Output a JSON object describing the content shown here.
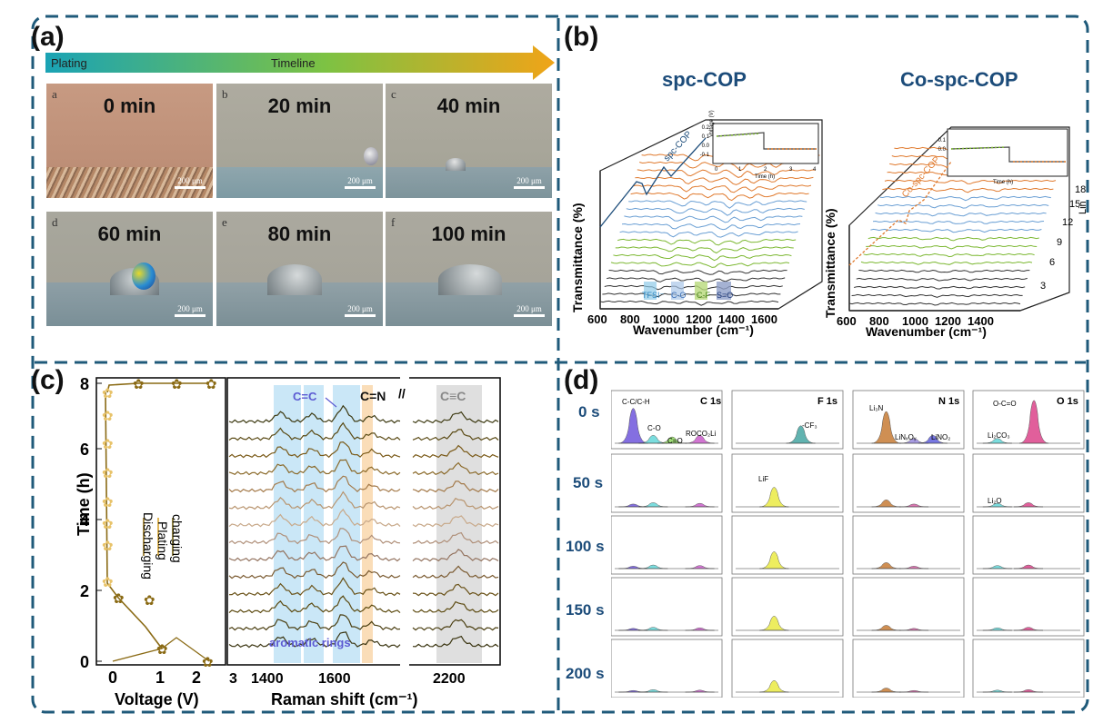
{
  "panels": {
    "a": "(a)",
    "b": "(b)",
    "c": "(c)",
    "d": "(d)"
  },
  "a": {
    "arrow_left": "Plating",
    "arrow_center": "Timeline",
    "scale": "200 μm",
    "photos": [
      {
        "letter": "a",
        "time": "0 min"
      },
      {
        "letter": "b",
        "time": "20 min"
      },
      {
        "letter": "c",
        "time": "40 min"
      },
      {
        "letter": "d",
        "time": "60 min"
      },
      {
        "letter": "e",
        "time": "80 min"
      },
      {
        "letter": "f",
        "time": "100 min"
      }
    ]
  },
  "b": {
    "left_title": "spc-COP",
    "right_title": "Co-spc-COP",
    "ylabel": "Transmittance (%)",
    "xlabel": "Wavenumber (cm⁻¹)",
    "left_ticks": [
      "600",
      "800",
      "1000",
      "1200",
      "1400",
      "1600"
    ],
    "right_ticks": [
      "600",
      "800",
      "1000",
      "1200",
      "1400"
    ],
    "bands": [
      "TFSI⁻",
      "C-O",
      "C-F",
      "S=O"
    ],
    "curve_label_left": "spc-COP",
    "curve_label_right": "Co-spc-COP",
    "inset_ylabel": "Voltage (V)",
    "inset_xlabel": "Time (h)",
    "inset_yticks": [
      "0.2",
      "0.1",
      "0.0",
      "-0.1"
    ],
    "inset_yticks_right": [
      "0.1",
      "0.0"
    ],
    "inset_xticks": [
      "0",
      "1",
      "2",
      "3",
      "4"
    ],
    "lin_label": "Lin",
    "lin_ticks": [
      "18",
      "15",
      "12",
      "9",
      "6",
      "3"
    ],
    "colors": {
      "orange": "#e07a2e",
      "blue": "#6a9fd4",
      "green": "#7cb832",
      "gray": "#333333"
    }
  },
  "c": {
    "ylabel": "Time (h)",
    "xlabel": "Voltage (V)",
    "yticks": [
      "0",
      "2",
      "4",
      "6",
      "8"
    ],
    "xticks": [
      "0",
      "1",
      "2"
    ],
    "legend": [
      "Discharging",
      "Plating",
      "charging"
    ],
    "raman_xlabel": "Raman shift (cm⁻¹)",
    "raman_ticks": [
      "3",
      "1400",
      "1600",
      "2200"
    ],
    "labels": {
      "cc": "C=C",
      "cn": "C=N",
      "ctc": "C≡C",
      "arom": "aromatic rings"
    }
  },
  "d": {
    "rows": [
      "0 s",
      "50 s",
      "100 s",
      "150 s",
      "200 s"
    ],
    "spectra": [
      "C 1s",
      "F 1s",
      "N 1s",
      "O 1s"
    ],
    "peaks": {
      "c": [
        "C-C/C-H",
        "C-O",
        "C=O",
        "ROCO₂Li"
      ],
      "f": [
        "-CF₃",
        "LiF"
      ],
      "n": [
        "Li₃N",
        "LiNₓOᵧ",
        "LiNO₂"
      ],
      "o": [
        "O-C=O",
        "Li₂CO₃",
        "Li₂O"
      ]
    }
  }
}
